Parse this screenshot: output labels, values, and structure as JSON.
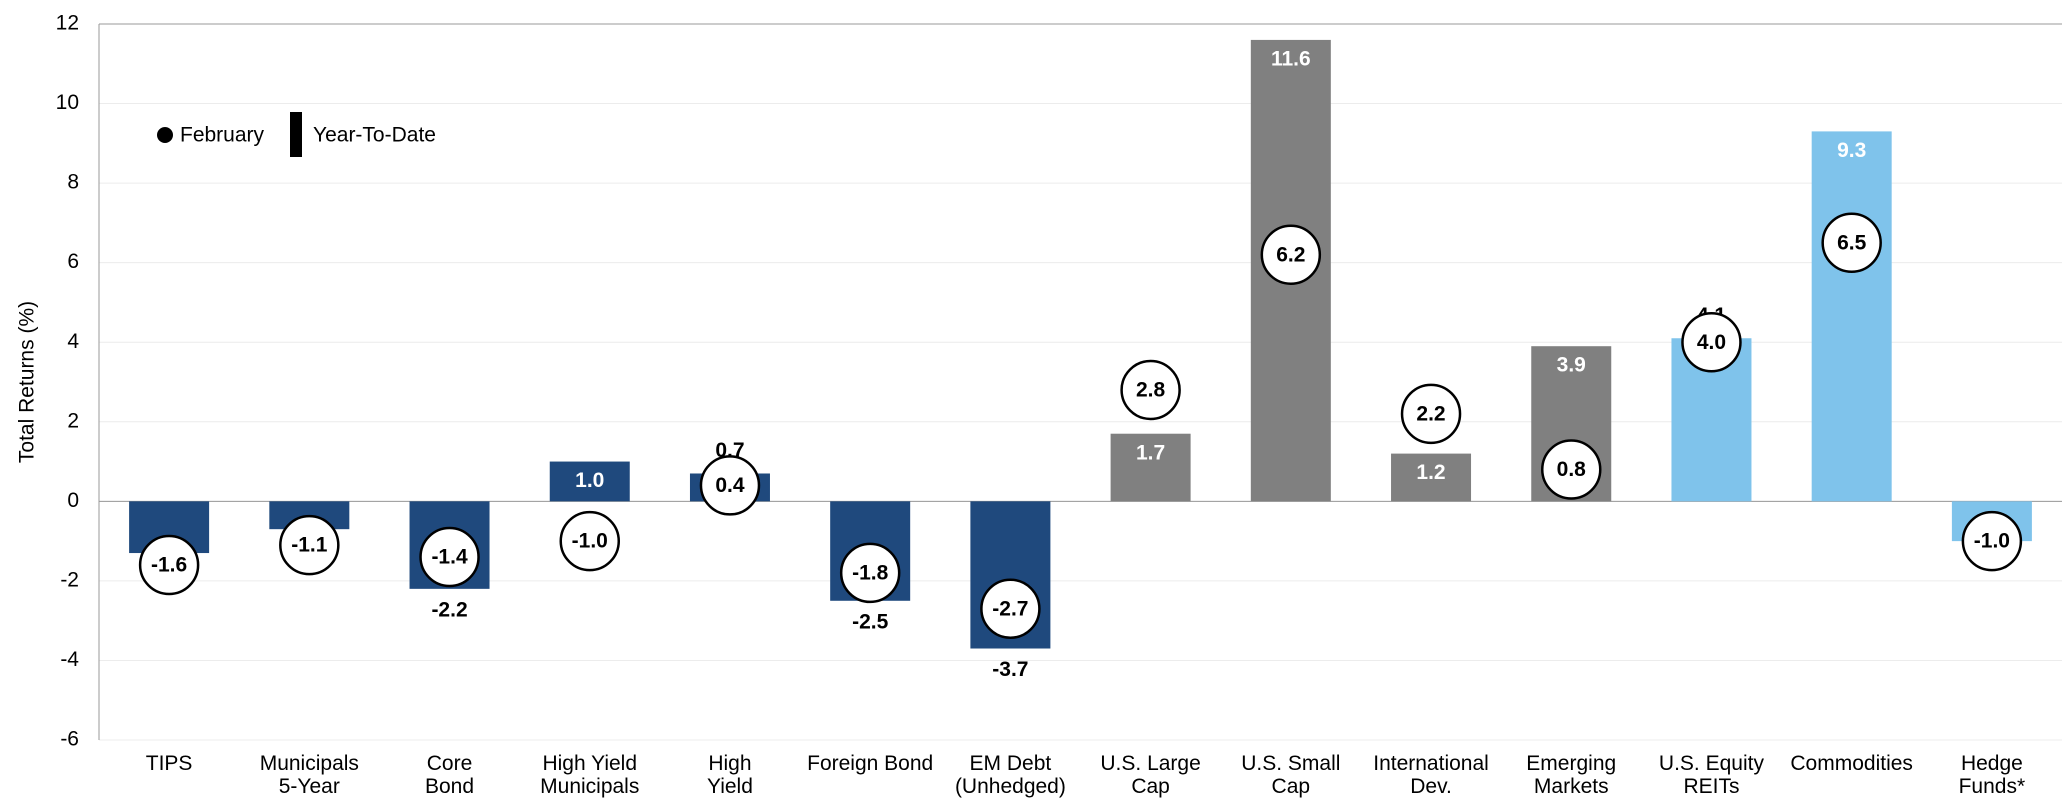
{
  "chart_data": {
    "type": "bar",
    "y_label": "Total Returns (%)",
    "categories": [
      "TIPS",
      "Municipals\n5-Year",
      "Core\nBond",
      "High Yield\nMunicipals",
      "High\nYield",
      "Foreign Bond",
      "EM Debt\n(Unhedged)",
      "U.S. Large\nCap",
      "U.S. Small\nCap",
      "International\nDev.",
      "Emerging\nMarkets",
      "U.S. Equity\nREITs",
      "Commodities",
      "Hedge\nFunds*"
    ],
    "series": [
      {
        "name": "Year-To-Date",
        "colors": [
          "#1f497d",
          "#1f497d",
          "#1f497d",
          "#1f497d",
          "#1f497d",
          "#1f497d",
          "#1f497d",
          "#808080",
          "#808080",
          "#808080",
          "#808080",
          "#7fc3eb",
          "#7fc3eb",
          "#7fc3eb"
        ],
        "values": [
          -1.3,
          -0.7,
          -2.2,
          1.0,
          0.7,
          -2.5,
          -3.7,
          1.7,
          11.6,
          1.2,
          3.9,
          4.1,
          9.3,
          -1.0
        ],
        "value_labels": [
          "-1.3",
          "-0.7",
          "-2.2",
          "1.0",
          "0.7",
          "-2.5",
          "-3.7",
          "1.7",
          "11.6",
          "1.2",
          "3.9",
          "4.1",
          "9.3",
          "-1.0"
        ]
      },
      {
        "name": "February",
        "color": "#ffffff",
        "values": [
          -1.6,
          -1.1,
          -1.4,
          -1.0,
          0.4,
          -1.8,
          -2.7,
          2.8,
          6.2,
          2.2,
          0.8,
          4.0,
          6.5,
          -1.0
        ],
        "value_labels": [
          "-1.6",
          "-1.1",
          "-1.4",
          "-1.0",
          "0.4",
          "-1.8",
          "-2.7",
          "2.8",
          "6.2",
          "2.2",
          "0.8",
          "4.0",
          "6.5",
          "-1.0"
        ]
      }
    ],
    "ylim": [
      -6,
      12
    ],
    "yticks": [
      -6,
      -4,
      -2,
      0,
      2,
      4,
      6,
      8,
      10,
      12
    ],
    "grid": true
  }
}
